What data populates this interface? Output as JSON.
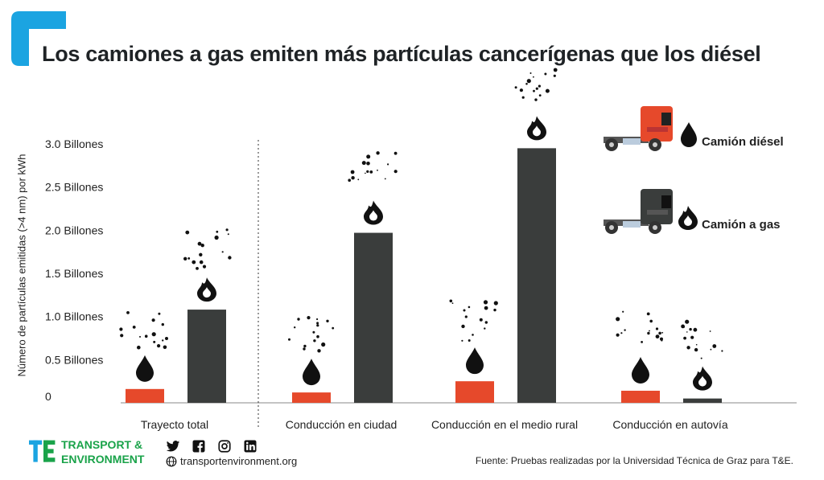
{
  "title": "Los camiones a gas emiten más partículas cancerígenas que los diésel",
  "colors": {
    "diesel": "#e6492b",
    "gas": "#3a3d3c",
    "accent": "#1ba4e1",
    "brand_green": "#1aa34a",
    "brand_blue": "#1ba4e1"
  },
  "chart_data": {
    "type": "bar",
    "title": "Los camiones a gas emiten más partículas cancerígenas que los diésel",
    "ylabel": "Número de partículas emitidas (>4 nm) por kWh",
    "xlabel": "",
    "ylim": [
      0,
      3.0
    ],
    "yticks": [
      {
        "value": 0,
        "label": "0"
      },
      {
        "value": 0.5,
        "label": "0.5 Billones"
      },
      {
        "value": 1.0,
        "label": "1.0 Billones"
      },
      {
        "value": 1.5,
        "label": "1.5 Billones"
      },
      {
        "value": 2.0,
        "label": "2.0 Billones"
      },
      {
        "value": 2.5,
        "label": "2.5 Billones"
      },
      {
        "value": 3.0,
        "label": "3.0 Billones"
      }
    ],
    "categories": [
      "Trayecto total",
      "Conducción en ciudad",
      "Conducción en el medio rural",
      "Conducción en autovía"
    ],
    "series": [
      {
        "name": "Camión diésel",
        "values": [
          0.16,
          0.12,
          0.25,
          0.14
        ]
      },
      {
        "name": "Camión a gas",
        "values": [
          1.08,
          1.97,
          2.95,
          0.05
        ]
      }
    ],
    "grid": false,
    "legend": "top-right"
  },
  "legend": {
    "diesel_label": "Camión diésel",
    "gas_label": "Camión a gas"
  },
  "footer": {
    "brand_line1": "TRANSPORT &",
    "brand_line2": "ENVIRONMENT",
    "website": "transportenvironment.org",
    "source": "Fuente: Pruebas realizadas por la Universidad Técnica de Graz para T&E."
  }
}
